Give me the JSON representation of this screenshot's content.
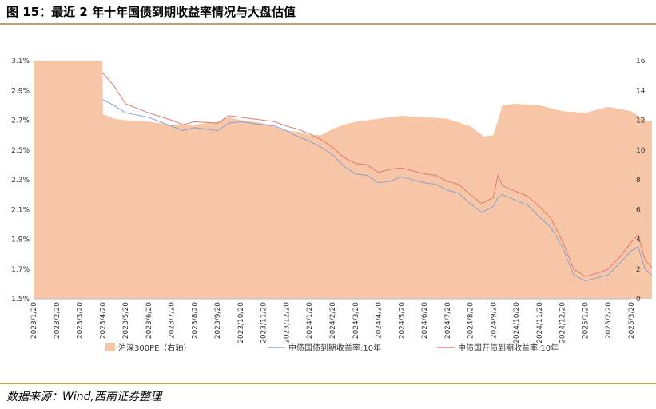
{
  "title": "图 15：最近 2 年十年国债到期收益率情况与大盘估值",
  "source": "数据来源：Wind,西南证券整理",
  "colors": {
    "pe_fill": "#f6c6a6",
    "cgb": "#8aa1d4",
    "cdb": "#e07a72",
    "rule": "#c9a063"
  },
  "chart_data": {
    "type": "area+line",
    "x_ticks": [
      "2023/1/20",
      "2023/2/20",
      "2023/3/20",
      "2023/4/20",
      "2023/5/20",
      "2023/6/20",
      "2023/7/20",
      "2023/8/20",
      "2023/9/20",
      "2023/10/20",
      "2023/11/20",
      "2023/12/20",
      "2024/1/20",
      "2024/2/20",
      "2024/3/20",
      "2024/4/20",
      "2024/5/20",
      "2024/6/20",
      "2024/7/20",
      "2024/8/20",
      "2024/9/20",
      "2024/10/20",
      "2024/11/20",
      "2024/12/20",
      "2025/1/20",
      "2025/2/20",
      "2025/3/20"
    ],
    "y_left_ticks": [
      "1.5%",
      "1.7%",
      "1.9%",
      "2.1%",
      "2.3%",
      "2.5%",
      "2.7%",
      "2.9%",
      "3.1%"
    ],
    "y_left_range": [
      1.5,
      3.1
    ],
    "y_right_ticks": [
      "0",
      "2",
      "4",
      "6",
      "8",
      "10",
      "12",
      "14",
      "16"
    ],
    "y_right_range": [
      0,
      16
    ],
    "legend": [
      "沪深300PE（右轴）",
      "中债国债到期收益率:10年",
      "中债国开债到期收益率:10年"
    ],
    "series": [
      {
        "name": "沪深300PE（右轴）",
        "axis": "right",
        "style": "area",
        "points": [
          [
            0,
            16
          ],
          [
            3,
            16
          ],
          [
            3.02,
            12.4
          ],
          [
            3.5,
            12.1
          ],
          [
            4,
            12.0
          ],
          [
            5,
            11.9
          ],
          [
            6,
            11.7
          ],
          [
            7,
            11.7
          ],
          [
            8,
            11.9
          ],
          [
            8.5,
            12.2
          ],
          [
            9,
            12.0
          ],
          [
            10,
            11.8
          ],
          [
            11,
            11.3
          ],
          [
            11.6,
            11.2
          ],
          [
            12,
            11.0
          ],
          [
            12.5,
            11.0
          ],
          [
            13,
            11.4
          ],
          [
            13.5,
            11.7
          ],
          [
            14,
            11.9
          ],
          [
            15,
            12.1
          ],
          [
            16,
            12.3
          ],
          [
            17,
            12.2
          ],
          [
            18,
            12.1
          ],
          [
            19,
            11.6
          ],
          [
            19.6,
            10.9
          ],
          [
            20,
            11.0
          ],
          [
            20.4,
            13.0
          ],
          [
            21,
            13.1
          ],
          [
            22,
            13.0
          ],
          [
            23,
            12.6
          ],
          [
            24,
            12.5
          ],
          [
            25,
            12.9
          ],
          [
            26,
            12.6
          ],
          [
            26.6,
            12.0
          ],
          [
            26.9,
            11.9
          ]
        ]
      },
      {
        "name": "中债国债到期收益率:10年",
        "axis": "left",
        "style": "line",
        "points": [
          [
            3,
            2.84
          ],
          [
            3.5,
            2.8
          ],
          [
            4,
            2.75
          ],
          [
            5,
            2.72
          ],
          [
            6,
            2.66
          ],
          [
            6.5,
            2.63
          ],
          [
            7,
            2.65
          ],
          [
            8,
            2.63
          ],
          [
            8.5,
            2.68
          ],
          [
            9,
            2.69
          ],
          [
            10,
            2.67
          ],
          [
            10.5,
            2.66
          ],
          [
            11,
            2.63
          ],
          [
            11.5,
            2.59
          ],
          [
            12,
            2.56
          ],
          [
            12.5,
            2.52
          ],
          [
            13,
            2.47
          ],
          [
            13.5,
            2.39
          ],
          [
            14,
            2.34
          ],
          [
            14.5,
            2.33
          ],
          [
            15,
            2.28
          ],
          [
            15.5,
            2.29
          ],
          [
            16,
            2.32
          ],
          [
            17,
            2.28
          ],
          [
            17.5,
            2.27
          ],
          [
            18,
            2.23
          ],
          [
            18.5,
            2.21
          ],
          [
            19,
            2.14
          ],
          [
            19.5,
            2.08
          ],
          [
            20,
            2.12
          ],
          [
            20.2,
            2.18
          ],
          [
            20.4,
            2.2
          ],
          [
            21,
            2.16
          ],
          [
            21.5,
            2.13
          ],
          [
            22,
            2.05
          ],
          [
            22.5,
            1.98
          ],
          [
            23,
            1.85
          ],
          [
            23.5,
            1.66
          ],
          [
            24,
            1.62
          ],
          [
            24.5,
            1.64
          ],
          [
            25,
            1.66
          ],
          [
            25.5,
            1.74
          ],
          [
            26,
            1.82
          ],
          [
            26.3,
            1.85
          ],
          [
            26.6,
            1.7
          ],
          [
            26.9,
            1.66
          ]
        ]
      },
      {
        "name": "中债国开债到期收益率:10年",
        "axis": "left",
        "style": "line",
        "points": [
          [
            3,
            3.02
          ],
          [
            3.5,
            2.93
          ],
          [
            4,
            2.81
          ],
          [
            5,
            2.75
          ],
          [
            6,
            2.7
          ],
          [
            6.5,
            2.67
          ],
          [
            7,
            2.69
          ],
          [
            8,
            2.68
          ],
          [
            8.5,
            2.73
          ],
          [
            9,
            2.72
          ],
          [
            10,
            2.7
          ],
          [
            10.5,
            2.69
          ],
          [
            11,
            2.66
          ],
          [
            11.5,
            2.64
          ],
          [
            12,
            2.61
          ],
          [
            12.5,
            2.57
          ],
          [
            13,
            2.52
          ],
          [
            13.5,
            2.45
          ],
          [
            14,
            2.41
          ],
          [
            14.5,
            2.4
          ],
          [
            15,
            2.35
          ],
          [
            15.5,
            2.37
          ],
          [
            16,
            2.38
          ],
          [
            17,
            2.34
          ],
          [
            17.5,
            2.33
          ],
          [
            18,
            2.29
          ],
          [
            18.5,
            2.27
          ],
          [
            19,
            2.2
          ],
          [
            19.5,
            2.14
          ],
          [
            20,
            2.18
          ],
          [
            20.2,
            2.33
          ],
          [
            20.4,
            2.26
          ],
          [
            21,
            2.22
          ],
          [
            21.5,
            2.19
          ],
          [
            22,
            2.12
          ],
          [
            22.5,
            2.04
          ],
          [
            23,
            1.89
          ],
          [
            23.5,
            1.7
          ],
          [
            24,
            1.65
          ],
          [
            24.5,
            1.67
          ],
          [
            25,
            1.7
          ],
          [
            25.5,
            1.78
          ],
          [
            26,
            1.88
          ],
          [
            26.3,
            1.93
          ],
          [
            26.6,
            1.76
          ],
          [
            26.9,
            1.71
          ]
        ]
      }
    ]
  }
}
